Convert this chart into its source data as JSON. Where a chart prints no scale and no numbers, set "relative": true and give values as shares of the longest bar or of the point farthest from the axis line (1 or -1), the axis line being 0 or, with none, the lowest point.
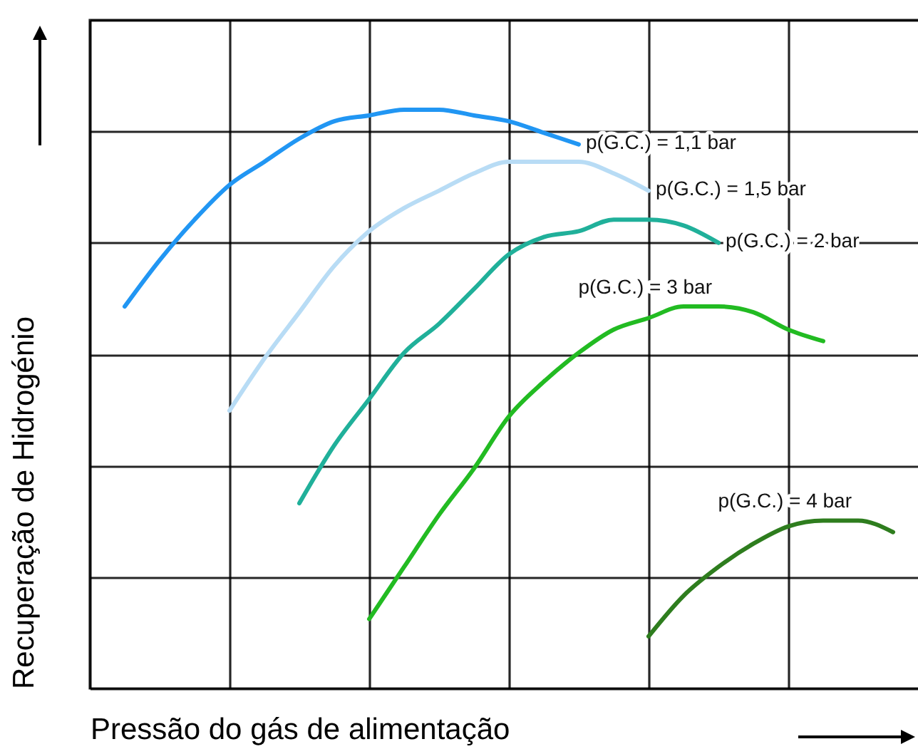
{
  "chart_data": {
    "type": "line",
    "relative": true,
    "grid": true,
    "xlabel": "Pressão do gás de alimentação",
    "ylabel": "Recuperação de Hidrogénio",
    "categories": [
      null,
      null,
      null,
      null,
      null,
      null,
      null,
      null,
      null,
      null,
      null,
      null,
      null,
      null,
      null,
      null,
      null,
      null,
      null,
      null,
      null,
      null,
      null,
      null,
      null
    ],
    "series": [
      {
        "name": "p(G.C.) = 1,1 bar",
        "color": "#2196f3",
        "values": [
          null,
          0.66,
          0.74,
          0.81,
          0.87,
          0.91,
          0.95,
          0.98,
          0.99,
          1,
          1,
          0.99,
          0.98,
          0.96,
          0.94,
          null,
          null,
          null,
          null,
          null,
          null,
          null,
          null,
          null,
          null
        ]
      },
      {
        "name": "p(G.C.) = 1,5 bar",
        "color": "#b8dcf5",
        "values": [
          null,
          null,
          null,
          null,
          0.48,
          0.57,
          0.65,
          0.73,
          0.79,
          0.83,
          0.86,
          0.89,
          0.91,
          0.91,
          0.91,
          0.89,
          0.86,
          null,
          null,
          null,
          null,
          null,
          null,
          null,
          null
        ]
      },
      {
        "name": "p(G.C.) = 2 bar",
        "color": "#20b09a",
        "values": [
          null,
          null,
          null,
          null,
          null,
          null,
          0.32,
          0.42,
          0.5,
          0.58,
          0.63,
          0.69,
          0.75,
          0.78,
          0.79,
          0.81,
          0.81,
          0.8,
          0.77,
          null,
          null,
          null,
          null,
          null,
          null
        ]
      },
      {
        "name": "p(G.C.) = 3 bar",
        "color": "#22bb22",
        "values": [
          null,
          null,
          null,
          null,
          null,
          null,
          null,
          null,
          0.12,
          0.21,
          0.3,
          0.38,
          0.47,
          0.53,
          0.58,
          0.62,
          0.64,
          0.66,
          0.66,
          0.65,
          0.62,
          0.6,
          null,
          null,
          null
        ]
      },
      {
        "name": "p(G.C.) = 4 bar",
        "color": "#2e7d1e",
        "values": [
          null,
          null,
          null,
          null,
          null,
          null,
          null,
          null,
          null,
          null,
          null,
          null,
          null,
          null,
          null,
          null,
          0.09,
          0.16,
          0.21,
          0.25,
          0.28,
          0.29,
          0.29,
          0.27,
          null
        ]
      }
    ]
  }
}
